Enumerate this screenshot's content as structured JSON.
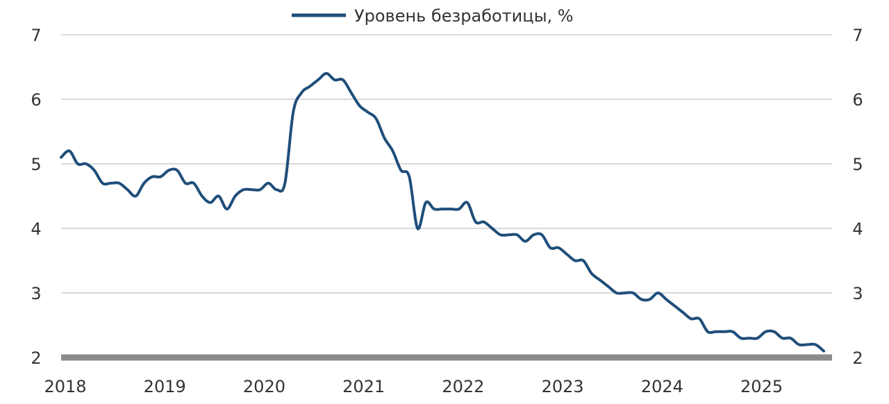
{
  "chart_data": {
    "type": "line",
    "legend": {
      "position": "top-center",
      "label": "Уровень безработицы, %"
    },
    "grid": true,
    "xlim": [
      2018,
      2025.75
    ],
    "ylim": [
      2,
      7
    ],
    "x_ticks": [
      "2018",
      "2019",
      "2020",
      "2021",
      "2022",
      "2023",
      "2024",
      "2025"
    ],
    "y_ticks": [
      "2",
      "3",
      "4",
      "5",
      "6",
      "7"
    ],
    "colors": {
      "line": "#1f4e79",
      "grid": "#d9d9d9",
      "baseline": "#8c8c8c",
      "text": "#333333"
    },
    "series": [
      {
        "name": "Уровень безработицы, %",
        "x": [
          2018.0,
          2018.0833,
          2018.1667,
          2018.25,
          2018.3333,
          2018.4167,
          2018.5,
          2018.5833,
          2018.6667,
          2018.75,
          2018.8333,
          2018.9167,
          2019.0,
          2019.0833,
          2019.1667,
          2019.25,
          2019.3333,
          2019.4167,
          2019.5,
          2019.5833,
          2019.6667,
          2019.75,
          2019.8333,
          2019.9167,
          2020.0,
          2020.0833,
          2020.1667,
          2020.25,
          2020.3333,
          2020.4167,
          2020.5,
          2020.5833,
          2020.6667,
          2020.75,
          2020.8333,
          2020.9167,
          2021.0,
          2021.0833,
          2021.1667,
          2021.25,
          2021.3333,
          2021.4167,
          2021.5,
          2021.5833,
          2021.6667,
          2021.75,
          2021.8333,
          2021.9167,
          2022.0,
          2022.0833,
          2022.1667,
          2022.25,
          2022.3333,
          2022.4167,
          2022.5,
          2022.5833,
          2022.6667,
          2022.75,
          2022.8333,
          2022.9167,
          2023.0,
          2023.0833,
          2023.1667,
          2023.25,
          2023.3333,
          2023.4167,
          2023.5,
          2023.5833,
          2023.6667,
          2023.75,
          2023.8333,
          2023.9167,
          2024.0,
          2024.0833,
          2024.1667,
          2024.25,
          2024.3333,
          2024.4167,
          2024.5,
          2024.5833,
          2024.6667,
          2024.75,
          2024.8333,
          2024.9167,
          2025.0,
          2025.0833,
          2025.1667,
          2025.25,
          2025.3333,
          2025.4167,
          2025.5,
          2025.5833,
          2025.6667
        ],
        "values": [
          5.1,
          5.2,
          5.0,
          5.0,
          4.9,
          4.7,
          4.7,
          4.7,
          4.6,
          4.5,
          4.7,
          4.8,
          4.8,
          4.9,
          4.9,
          4.7,
          4.7,
          4.5,
          4.4,
          4.5,
          4.3,
          4.5,
          4.6,
          4.6,
          4.6,
          4.7,
          4.6,
          4.7,
          5.8,
          6.1,
          6.2,
          6.3,
          6.4,
          6.3,
          6.3,
          6.1,
          5.9,
          5.8,
          5.7,
          5.4,
          5.2,
          4.9,
          4.8,
          4.0,
          4.4,
          4.3,
          4.3,
          4.3,
          4.3,
          4.4,
          4.1,
          4.1,
          4.0,
          3.9,
          3.9,
          3.9,
          3.8,
          3.9,
          3.9,
          3.7,
          3.7,
          3.6,
          3.5,
          3.5,
          3.3,
          3.2,
          3.1,
          3.0,
          3.0,
          3.0,
          2.9,
          2.9,
          3.0,
          2.9,
          2.8,
          2.7,
          2.6,
          2.6,
          2.4,
          2.4,
          2.4,
          2.4,
          2.3,
          2.3,
          2.3,
          2.4,
          2.4,
          2.3,
          2.3,
          2.2,
          2.2,
          2.2,
          2.1
        ]
      }
    ]
  }
}
